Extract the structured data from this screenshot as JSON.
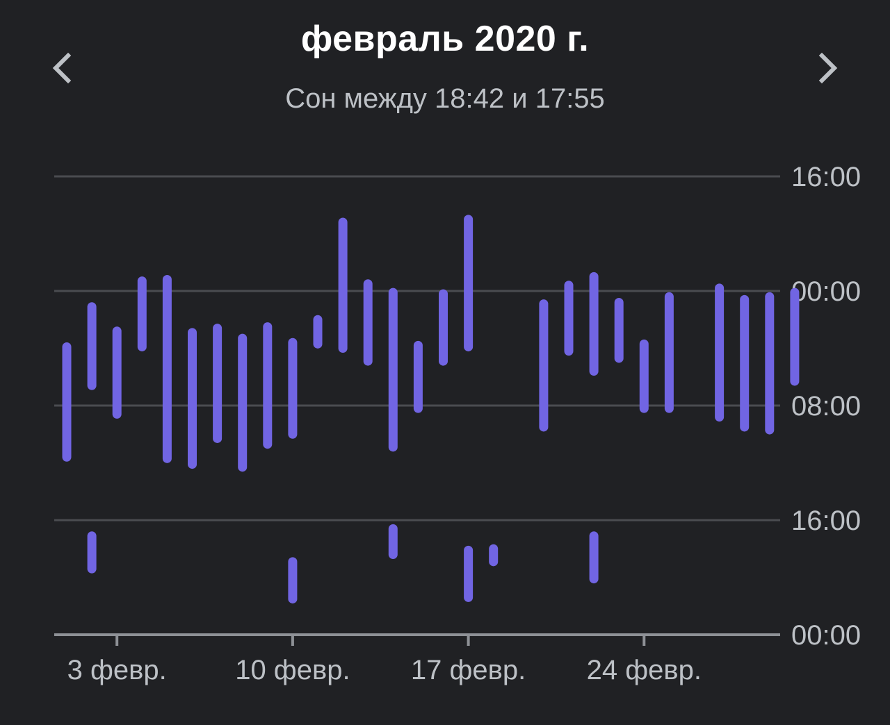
{
  "header": {
    "title": "февраль 2020 г.",
    "subtitle": "Сон между 18:42 и 17:55",
    "prev_icon": "chevron-left-icon",
    "next_icon": "chevron-right-icon"
  },
  "colors": {
    "background": "#202124",
    "bar": "#7165e3",
    "grid": "#4a4c50",
    "axis": "#8e9196",
    "label": "#bdc1c6",
    "title": "#ffffff"
  },
  "chart_data": {
    "type": "range-bar",
    "title": "февраль 2020 г.",
    "subtitle": "Сон между 18:42 и 17:55",
    "y_ticks": [
      "16:00",
      "00:00",
      "08:00",
      "16:00",
      "00:00"
    ],
    "x_ticks": [
      {
        "day": 3,
        "label": "3 февр."
      },
      {
        "day": 10,
        "label": "10 февр."
      },
      {
        "day": 17,
        "label": "17 февр."
      },
      {
        "day": 24,
        "label": "24 февр."
      }
    ],
    "x_range": [
      1,
      29
    ],
    "hours_axis": "hours after 16:00 of previous day, top = 16:00 (0), 00:00 (8), 08:00 (16), 16:00 (24), bottom 00:00 (32)",
    "grid": true,
    "night_sleep": [
      {
        "day": 1,
        "start": 11.9,
        "end": 19.6
      },
      {
        "day": 2,
        "start": 9.1,
        "end": 14.6
      },
      {
        "day": 3,
        "start": 10.8,
        "end": 16.6
      },
      {
        "day": 4,
        "start": 7.3,
        "end": 11.9
      },
      {
        "day": 5,
        "start": 7.2,
        "end": 19.7
      },
      {
        "day": 6,
        "start": 10.9,
        "end": 20.1
      },
      {
        "day": 7,
        "start": 10.6,
        "end": 18.3
      },
      {
        "day": 8,
        "start": 11.3,
        "end": 20.3
      },
      {
        "day": 9,
        "start": 10.5,
        "end": 18.7
      },
      {
        "day": 10,
        "start": 11.6,
        "end": 18.0
      },
      {
        "day": 11,
        "start": 10.0,
        "end": 11.7
      },
      {
        "day": 12,
        "start": 3.2,
        "end": 12.0
      },
      {
        "day": 13,
        "start": 7.5,
        "end": 12.9
      },
      {
        "day": 14,
        "start": 8.1,
        "end": 18.9
      },
      {
        "day": 15,
        "start": 11.8,
        "end": 16.2
      },
      {
        "day": 16,
        "start": 8.2,
        "end": 12.9
      },
      {
        "day": 17,
        "start": 3.0,
        "end": 11.9
      },
      {
        "day": 20,
        "start": 8.9,
        "end": 17.5
      },
      {
        "day": 21,
        "start": 7.6,
        "end": 12.2
      },
      {
        "day": 22,
        "start": 7.0,
        "end": 13.6
      },
      {
        "day": 23,
        "start": 8.8,
        "end": 12.7
      },
      {
        "day": 24,
        "start": 11.7,
        "end": 16.2
      },
      {
        "day": 25,
        "start": 8.4,
        "end": 16.2
      },
      {
        "day": 27,
        "start": 7.8,
        "end": 16.8
      },
      {
        "day": 28,
        "start": 8.6,
        "end": 17.5
      },
      {
        "day": 29,
        "start": 8.4,
        "end": 17.7
      },
      {
        "day": 30,
        "start": 8.1,
        "end": 14.3
      }
    ],
    "day_naps": [
      {
        "day": 2,
        "start": 25.1,
        "end": 27.4
      },
      {
        "day": 10,
        "start": 26.9,
        "end": 29.5
      },
      {
        "day": 14,
        "start": 24.6,
        "end": 26.4
      },
      {
        "day": 17,
        "start": 26.1,
        "end": 29.4
      },
      {
        "day": 18,
        "start": 26.0,
        "end": 26.9
      },
      {
        "day": 22,
        "start": 25.1,
        "end": 28.1
      }
    ]
  }
}
